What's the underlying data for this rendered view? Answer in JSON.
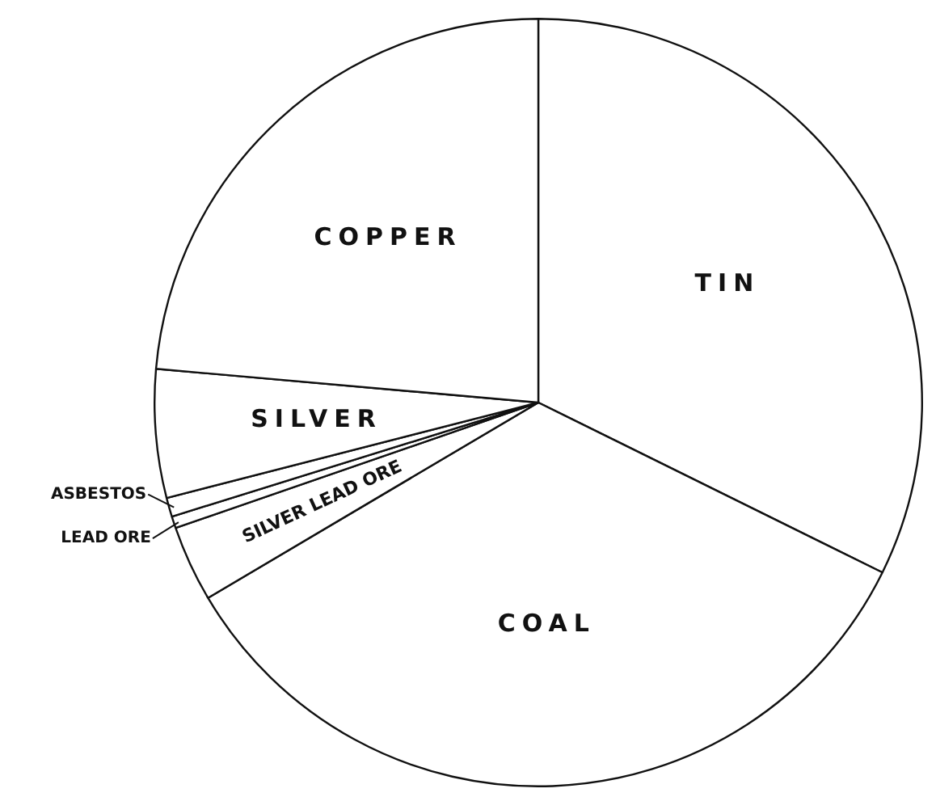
{
  "chart_data": {
    "type": "pie",
    "categories": [
      "TIN",
      "COAL",
      "SILVER LEAD ORE",
      "LEAD ORE",
      "ASBESTOS",
      "SILVER",
      "COPPER"
    ],
    "values": [
      32.3,
      34.2,
      3.2,
      0.5,
      0.8,
      5.4,
      23.6
    ],
    "colors": [
      "#ffffff",
      "#ffffff",
      "#ffffff",
      "#ffffff",
      "#ffffff",
      "#ffffff",
      "#ffffff"
    ],
    "legend": false
  }
}
